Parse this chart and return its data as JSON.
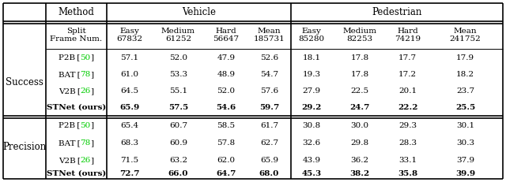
{
  "bg": "#ffffff",
  "green": "#00CC00",
  "header_row": [
    "Method",
    "Vehicle",
    "Pedestrian"
  ],
  "subheader_col1": [
    "Split",
    "Frame Num."
  ],
  "subheader_nums_vehicle": [
    [
      "Easy",
      "67832"
    ],
    [
      "Medium",
      "61252"
    ],
    [
      "Hard",
      "56647"
    ],
    [
      "Mean",
      "185731"
    ]
  ],
  "subheader_nums_pedestrian": [
    [
      "Easy",
      "85280"
    ],
    [
      "Medium",
      "82253"
    ],
    [
      "Hard",
      "74219"
    ],
    [
      "Mean",
      "241752"
    ]
  ],
  "groups": [
    "Success",
    "Precision"
  ],
  "methods": [
    "P2B",
    "BAT",
    "V2B",
    "STNet (ours)"
  ],
  "citations": [
    "50",
    "78",
    "26",
    ""
  ],
  "bold_method": "STNet (ours)",
  "success": [
    [
      57.1,
      52.0,
      47.9,
      52.6,
      18.1,
      17.8,
      17.7,
      17.9
    ],
    [
      61.0,
      53.3,
      48.9,
      54.7,
      19.3,
      17.8,
      17.2,
      18.2
    ],
    [
      64.5,
      55.1,
      52.0,
      57.6,
      27.9,
      22.5,
      20.1,
      23.7
    ],
    [
      65.9,
      57.5,
      54.6,
      59.7,
      29.2,
      24.7,
      22.2,
      25.5
    ]
  ],
  "precision": [
    [
      65.4,
      60.7,
      58.5,
      61.7,
      30.8,
      30.0,
      29.3,
      30.1
    ],
    [
      68.3,
      60.9,
      57.8,
      62.7,
      32.6,
      29.8,
      28.3,
      30.3
    ],
    [
      71.5,
      63.2,
      62.0,
      65.9,
      43.9,
      36.2,
      33.1,
      37.9
    ],
    [
      72.7,
      66.0,
      64.7,
      68.0,
      45.3,
      38.2,
      35.8,
      39.9
    ]
  ],
  "lw_thick": 1.2,
  "lw_thin": 0.7,
  "fs_header": 8.5,
  "fs_sub": 7.5,
  "fs_data": 7.5
}
